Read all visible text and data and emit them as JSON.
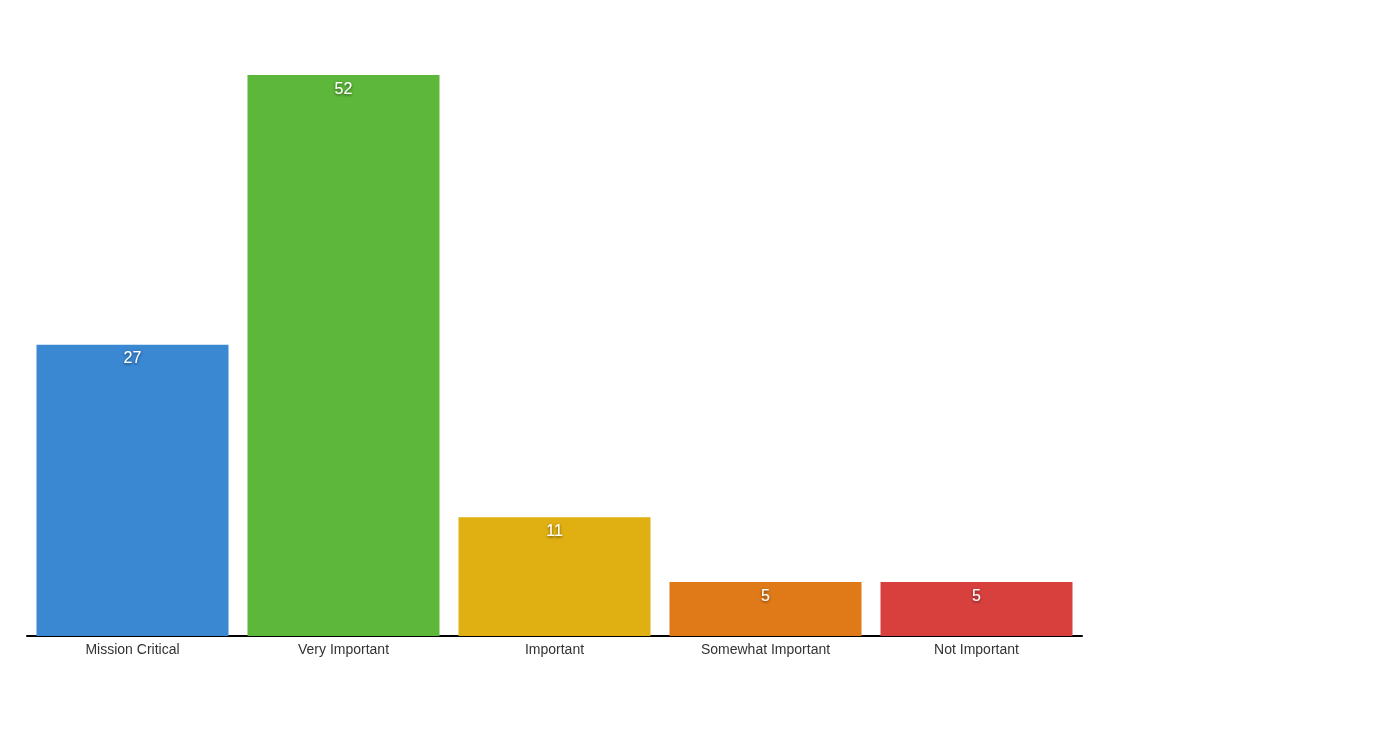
{
  "chart_data": {
    "type": "bar",
    "categories": [
      "Mission Critical",
      "Very Important",
      "Important",
      "Somewhat Important",
      "Not Important"
    ],
    "values": [
      27,
      52,
      11,
      5,
      5
    ],
    "colors": [
      "#3a87d2",
      "#5db73a",
      "#e0b012",
      "#e07a18",
      "#d8403e"
    ],
    "data_labels": true
  }
}
